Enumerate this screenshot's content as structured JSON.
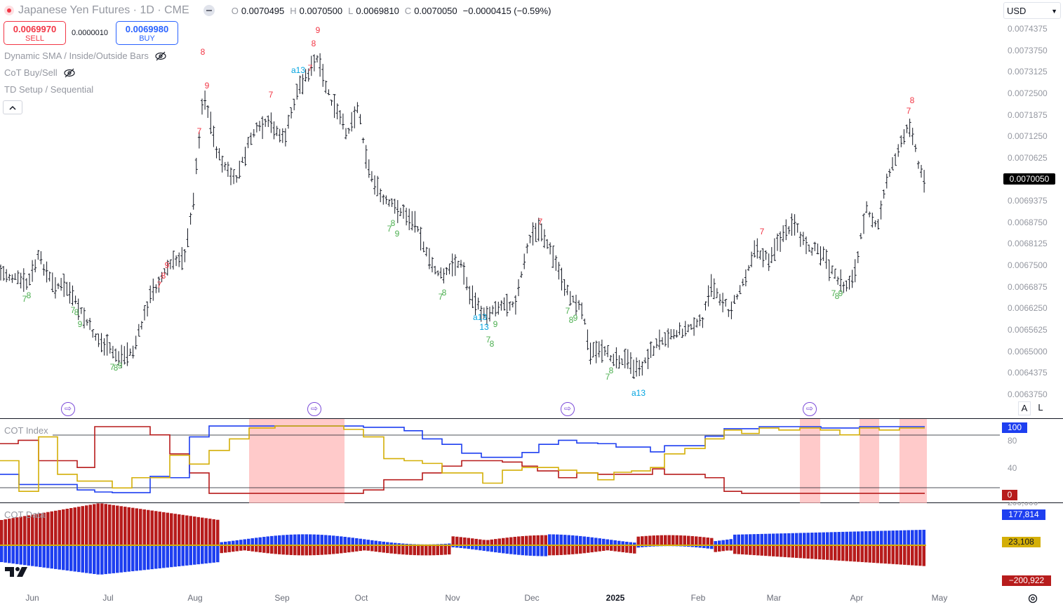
{
  "header": {
    "symbol_title": "Japanese Yen Futures · 1D · CME",
    "ohlc": {
      "o_label": "O",
      "o": "0.0070495",
      "h_label": "H",
      "h": "0.0070500",
      "l_label": "L",
      "l": "0.0069810",
      "c_label": "C",
      "c": "0.0070050",
      "change": "−0.0000415 (−0.59%)"
    },
    "sell_price": "0.0069970",
    "sell_label": "SELL",
    "spread": "0.0000010",
    "buy_price": "0.0069980",
    "buy_label": "BUY",
    "currency": "USD"
  },
  "indicators": {
    "dynamic_sma": "Dynamic SMA / Inside/Outside Bars",
    "cot_buysell": "CoT Buy/Sell",
    "td_setup": "TD Setup / Sequential"
  },
  "price_axis": {
    "ticks": [
      "0.0074375",
      "0.0073750",
      "0.0073125",
      "0.0072500",
      "0.0071875",
      "0.0071250",
      "0.0070625",
      "0.0069375",
      "0.0068750",
      "0.0068125",
      "0.0067500",
      "0.0066875",
      "0.0066250",
      "0.0065625",
      "0.0065000",
      "0.0064375",
      "0.0063750"
    ],
    "last_price": "0.0070050",
    "auto_label": "A",
    "log_label": "L"
  },
  "time_axis": [
    "Jun",
    "Jul",
    "Aug",
    "Sep",
    "Oct",
    "Nov",
    "Dec",
    "2025",
    "Feb",
    "Mar",
    "Apr",
    "May"
  ],
  "cot_index": {
    "title": "COT Index",
    "ticks": [
      "80",
      "40"
    ],
    "tag_top": "100",
    "tag_bottom": "0"
  },
  "cot_data": {
    "title": "COT Data",
    "tag_top": "177,814",
    "tag_mid": "23,108",
    "tag_bottom": "−200,922",
    "partial_tick": "200,000"
  },
  "colors": {
    "red": "#b71c1c",
    "blue": "#1e3ff0",
    "gold": "#d4af07",
    "highlight": "#ffb3b3",
    "buy": "#2962ff",
    "sell": "#f23645",
    "td_red": "#f23645",
    "td_green": "#4caf50",
    "td_cyan": "#00a3e0"
  }
}
